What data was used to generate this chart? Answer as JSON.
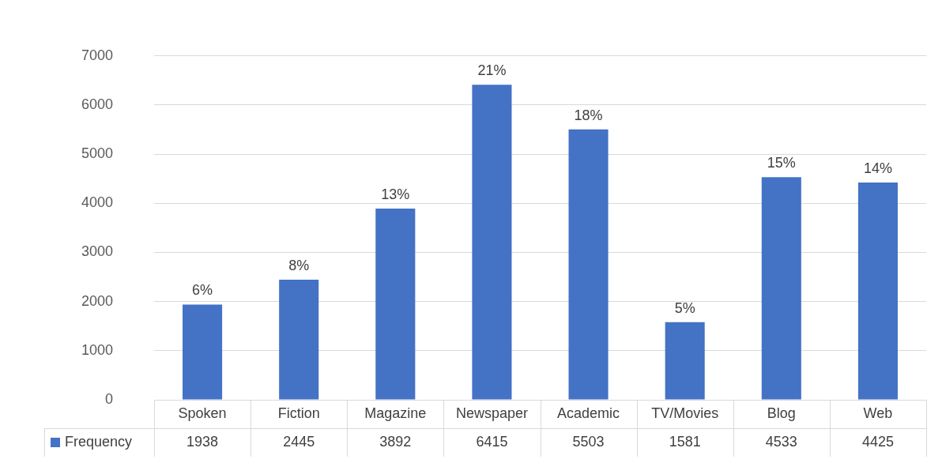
{
  "chart_data": {
    "type": "bar",
    "categories": [
      "Spoken",
      "Fiction",
      "Magazine",
      "Newspaper",
      "Academic",
      "TV/Movies",
      "Blog",
      "Web"
    ],
    "series": [
      {
        "name": "Frequency",
        "color": "#4472c4",
        "values": [
          1938,
          2445,
          3892,
          6415,
          5503,
          1581,
          4533,
          4425
        ]
      }
    ],
    "annotations": [
      {
        "text": "6%",
        "x": "Spoken",
        "y": 1938
      },
      {
        "text": "8%",
        "x": "Fiction",
        "y": 2445
      },
      {
        "text": "13%",
        "x": "Magazine",
        "y": 3892
      },
      {
        "text": "21%",
        "x": "Newspaper",
        "y": 6415
      },
      {
        "text": "18%",
        "x": "Academic",
        "y": 5503
      },
      {
        "text": "5%",
        "x": "TV/Movies",
        "y": 1581
      },
      {
        "text": "15%",
        "x": "Blog",
        "y": 4533
      },
      {
        "text": "14%",
        "x": "Web",
        "y": 4425
      }
    ],
    "ylim": [
      0,
      7000
    ],
    "yticks": [
      0,
      1000,
      2000,
      3000,
      4000,
      5000,
      6000,
      7000
    ],
    "grid": "y",
    "legend": "bottom",
    "data_labels": true
  }
}
